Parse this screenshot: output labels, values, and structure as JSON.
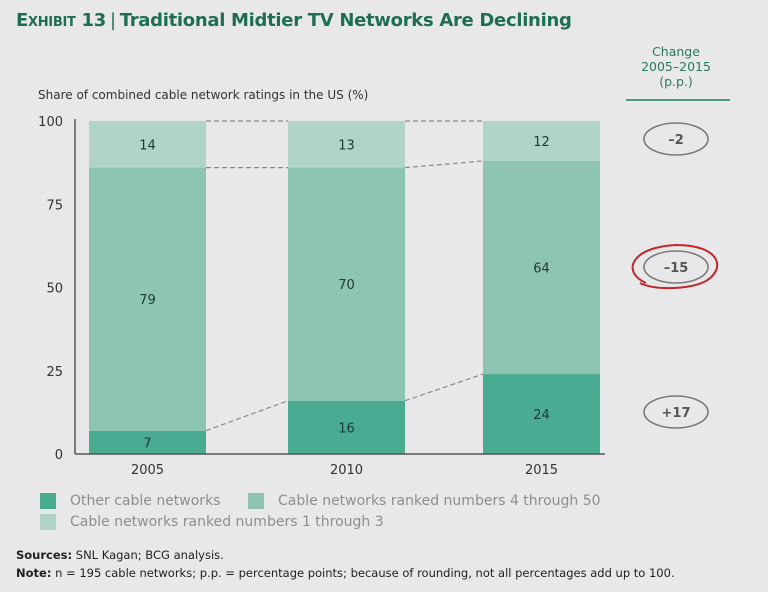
{
  "title": {
    "exhibit": "Exhibit 13",
    "separator": "|",
    "text": "Traditional Midtier TV Networks Are Declining"
  },
  "change_header": {
    "line1": "Change",
    "line2": "2005–2015",
    "line3": "(p.p.)"
  },
  "chart_data": {
    "type": "bar",
    "stacked": true,
    "title": "Traditional Midtier TV Networks Are Declining",
    "ylabel": "Share of combined cable network ratings in the US (%)",
    "xlabel": "",
    "categories": [
      "2005",
      "2010",
      "2015"
    ],
    "ylim": [
      0,
      100
    ],
    "yticks": [
      0,
      25,
      50,
      75,
      100
    ],
    "grid": false,
    "legend_position": "bottom-left",
    "series": [
      {
        "name": "Other cable networks",
        "values": [
          7,
          16,
          24
        ],
        "color": "#4aab93",
        "change": "+17"
      },
      {
        "name": "Cable networks ranked numbers 4 through 50",
        "values": [
          79,
          70,
          64
        ],
        "color": "#8dc4b2",
        "change": "–15"
      },
      {
        "name": "Cable networks ranked numbers 1 through 3",
        "values": [
          14,
          13,
          12
        ],
        "color": "#b0d5c8",
        "change": "–2"
      }
    ],
    "highlighted_change": "–15",
    "connector_style": "dashed"
  },
  "legend": {
    "items": [
      {
        "label": "Other cable networks",
        "color": "#4aab93"
      },
      {
        "label": "Cable networks ranked numbers 4 through 50",
        "color": "#8dc4b2"
      },
      {
        "label": "Cable networks ranked numbers 1 through 3",
        "color": "#b0d5c8"
      }
    ]
  },
  "footer": {
    "sources_label": "Sources:",
    "sources_text": " SNL Kagan; BCG analysis.",
    "note_label": "Note:",
    "note_text": " n = 195 cable networks; p.p. = percentage points; because of rounding, not all percentages add up to 100."
  },
  "colors": {
    "title": "#1e6e54",
    "axis": "#555555",
    "connector": "#8a8a8a",
    "highlight": "#c0282d",
    "oval": "#7a7a7a"
  }
}
